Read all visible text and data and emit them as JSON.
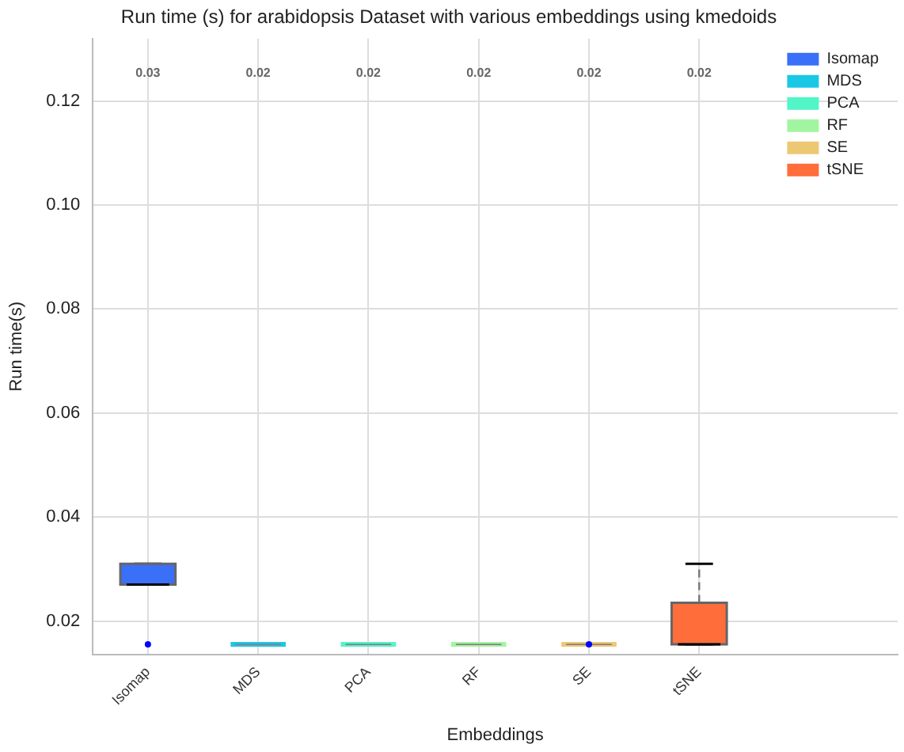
{
  "chart_data": {
    "type": "box",
    "title": "Run time (s) for arabidopsis Dataset with various embeddings using kmedoids",
    "xlabel": "Embeddings",
    "ylabel": "Run time(s)",
    "categories": [
      "Isomap",
      "MDS",
      "PCA",
      "RF",
      "SE",
      "tSNE"
    ],
    "series": [
      {
        "name": "Isomap",
        "color": "#3a6ff7",
        "boxes": [
          {
            "low": 0.027,
            "q1": 0.027,
            "median": 0.027,
            "q3": 0.031,
            "high": 0.031,
            "outliers": [
              0.0155
            ]
          },
          null,
          null,
          null,
          null,
          null
        ]
      },
      {
        "name": "MDS",
        "color": "#1ac8e5",
        "boxes": [
          null,
          {
            "low": 0.0155,
            "q1": 0.0155,
            "median": 0.0155,
            "q3": 0.0155,
            "high": 0.0155
          },
          null,
          null,
          null,
          null
        ]
      },
      {
        "name": "PCA",
        "color": "#52f5c8",
        "boxes": [
          null,
          null,
          {
            "low": 0.0155,
            "q1": 0.0155,
            "median": 0.0155,
            "q3": 0.0155,
            "high": 0.0155
          },
          null,
          null,
          null
        ]
      },
      {
        "name": "RF",
        "color": "#a2f5a0",
        "boxes": [
          null,
          null,
          null,
          {
            "low": 0.0155,
            "q1": 0.0155,
            "median": 0.0155,
            "q3": 0.0155,
            "high": 0.0155
          },
          null,
          null
        ]
      },
      {
        "name": "SE",
        "color": "#ecc873",
        "boxes": [
          null,
          null,
          null,
          null,
          {
            "low": 0.0155,
            "q1": 0.0155,
            "median": 0.0155,
            "q3": 0.0155,
            "high": 0.0155,
            "outliers": [
              0.0155
            ]
          },
          null
        ]
      },
      {
        "name": "tSNE",
        "color": "#ff6d3a",
        "boxes": [
          null,
          null,
          null,
          null,
          null,
          {
            "low": 0.0155,
            "q1": 0.0155,
            "median": 0.0155,
            "q3": 0.0235,
            "high": 0.031
          }
        ]
      }
    ],
    "annotations": [
      "0.03",
      "0.02",
      "0.02",
      "0.02",
      "0.02",
      "0.02"
    ],
    "ylim": [
      0.0136,
      0.132
    ],
    "yticks": [
      {
        "value": 0.02,
        "label": "0.02"
      },
      {
        "value": 0.04,
        "label": "0.04"
      },
      {
        "value": 0.06,
        "label": "0.06"
      },
      {
        "value": 0.08,
        "label": "0.08"
      },
      {
        "value": 0.1,
        "label": "0.10"
      },
      {
        "value": 0.12,
        "label": "0.12"
      }
    ],
    "grid": true,
    "legend": "top right"
  }
}
